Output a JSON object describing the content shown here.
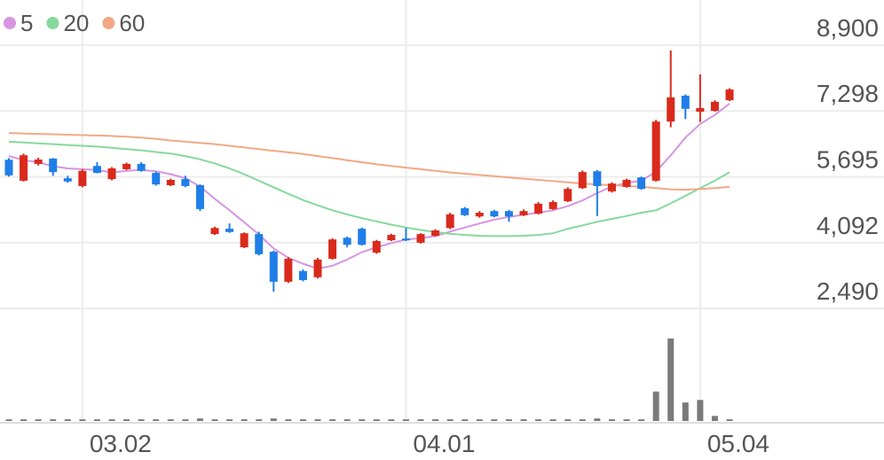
{
  "chart_data": {
    "type": "candlestick",
    "categories": [
      null,
      null,
      null,
      null,
      null,
      "03.02",
      null,
      null,
      null,
      null,
      null,
      null,
      null,
      null,
      null,
      null,
      null,
      null,
      null,
      null,
      null,
      null,
      null,
      null,
      null,
      null,
      null,
      "04.01",
      null,
      null,
      null,
      null,
      null,
      null,
      null,
      null,
      null,
      null,
      null,
      null,
      null,
      null,
      null,
      null,
      null,
      null,
      null,
      "05.04",
      null,
      null
    ],
    "open": [
      6110,
      5600,
      6010,
      6140,
      5660,
      5470,
      5960,
      5640,
      5880,
      6010,
      5790,
      5490,
      5640,
      5490,
      4300,
      4430,
      3980,
      4300,
      3870,
      3140,
      3400,
      3250,
      3700,
      4210,
      4430,
      3850,
      4150,
      4190,
      4090,
      4260,
      4450,
      4930,
      4730,
      4860,
      4860,
      4760,
      4800,
      4910,
      5100,
      5420,
      5830,
      5340,
      5450,
      5680,
      5600,
      7040,
      7670,
      7280,
      7300,
      7560
    ],
    "high": [
      6150,
      6260,
      6160,
      6150,
      5720,
      5880,
      6050,
      5930,
      6040,
      6050,
      5820,
      5650,
      5720,
      5510,
      4480,
      4560,
      4340,
      4360,
      3900,
      3740,
      3440,
      3720,
      4200,
      4240,
      4460,
      4160,
      4310,
      4450,
      4320,
      4420,
      4820,
      4960,
      4860,
      4890,
      4890,
      4900,
      5080,
      5120,
      5440,
      5850,
      5860,
      5560,
      5650,
      5700,
      7080,
      8770,
      7700,
      8190,
      7560,
      7850
    ],
    "low": [
      5700,
      5580,
      5970,
      5720,
      5550,
      5440,
      5780,
      5610,
      5860,
      5820,
      5480,
      5470,
      5440,
      4860,
      4280,
      4330,
      3960,
      3780,
      2900,
      3110,
      3150,
      3220,
      3680,
      3980,
      4020,
      3820,
      4130,
      4130,
      4070,
      4240,
      4420,
      4740,
      4700,
      4710,
      4600,
      4740,
      4780,
      4890,
      5080,
      5400,
      4740,
      5310,
      5430,
      5380,
      5580,
      6900,
      7100,
      7030,
      7280,
      7540
    ],
    "close": [
      5730,
      6220,
      6115,
      5810,
      5580,
      5840,
      5790,
      5900,
      6010,
      5840,
      5510,
      5620,
      5470,
      4910,
      4450,
      4350,
      4320,
      3810,
      3140,
      3700,
      3180,
      3680,
      4170,
      4040,
      4040,
      4130,
      4280,
      4150,
      4300,
      4390,
      4780,
      4760,
      4820,
      4730,
      4730,
      4860,
      5040,
      5080,
      5400,
      5810,
      5470,
      5530,
      5620,
      5400,
      7040,
      7630,
      7350,
      7370,
      7520,
      7820
    ],
    "series": [
      {
        "name": "5",
        "color": "#d795e3",
        "values": [
          6200,
          6100,
          6050,
          5950,
          5900,
          5880,
          5860,
          5800,
          5840,
          5860,
          5830,
          5760,
          5660,
          5460,
          5160,
          4880,
          4590,
          4290,
          3950,
          3720,
          3580,
          3460,
          3530,
          3680,
          3860,
          3980,
          4080,
          4170,
          4200,
          4250,
          4360,
          4460,
          4560,
          4650,
          4720,
          4770,
          4820,
          4880,
          4980,
          5120,
          5300,
          5460,
          5550,
          5600,
          5820,
          6220,
          6650,
          6980,
          7200,
          7480
        ]
      },
      {
        "name": "20",
        "color": "#86d99c",
        "values": [
          6550,
          6530,
          6510,
          6490,
          6470,
          6450,
          6430,
          6400,
          6370,
          6340,
          6300,
          6260,
          6200,
          6120,
          6020,
          5900,
          5760,
          5600,
          5440,
          5280,
          5130,
          5000,
          4880,
          4780,
          4690,
          4610,
          4530,
          4460,
          4400,
          4350,
          4310,
          4280,
          4260,
          4250,
          4250,
          4260,
          4280,
          4320,
          4430,
          4510,
          4600,
          4670,
          4740,
          4820,
          4880,
          5050,
          5230,
          5420,
          5600,
          5810
        ]
      },
      {
        "name": "60",
        "color": "#f2a884",
        "values": [
          6760,
          6750,
          6740,
          6730,
          6720,
          6710,
          6700,
          6690,
          6670,
          6650,
          6620,
          6580,
          6550,
          6520,
          6490,
          6450,
          6410,
          6370,
          6330,
          6290,
          6250,
          6200,
          6150,
          6100,
          6050,
          6000,
          5960,
          5920,
          5880,
          5840,
          5800,
          5770,
          5740,
          5710,
          5680,
          5650,
          5620,
          5590,
          5560,
          5530,
          5510,
          5490,
          5470,
          5450,
          5420,
          5390,
          5380,
          5400,
          5420,
          5450
        ]
      }
    ],
    "volume": [
      2,
      2,
      2,
      2,
      2,
      2,
      2,
      2,
      2,
      2,
      2,
      2,
      2,
      3,
      2,
      2,
      2,
      2,
      3,
      2,
      2,
      2,
      2,
      2,
      2,
      2,
      2,
      2,
      2,
      2,
      2,
      2,
      2,
      2,
      2,
      2,
      2,
      2,
      2,
      2,
      3,
      2,
      2,
      2,
      35,
      98,
      22,
      25,
      6,
      2
    ],
    "volume_lim": [
      0,
      100
    ],
    "up_color": "#d92a1c",
    "down_color": "#1f7ee8",
    "volume_color": "#7a7a7a",
    "ylim": [
      2490,
      10000
    ],
    "yticks": [
      {
        "value": 8900,
        "label": "8,900"
      },
      {
        "value": 7298,
        "label": "7,298"
      },
      {
        "value": 5695,
        "label": "5,695"
      },
      {
        "value": 4092,
        "label": "4,092"
      },
      {
        "value": 2490,
        "label": "2,490"
      }
    ],
    "grid": true
  }
}
